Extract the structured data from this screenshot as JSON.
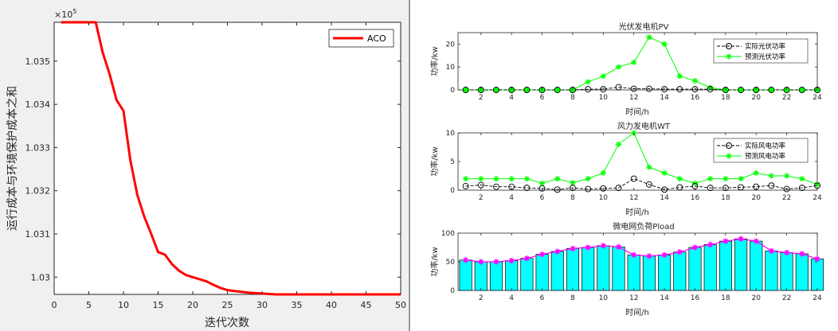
{
  "chart_data": [
    {
      "type": "line",
      "xlabel": "迭代次数",
      "ylabel": "运行成本与环境保护成本之和",
      "exponent_label": "×10",
      "exponent_power": "5",
      "xlim": [
        0,
        50
      ],
      "ylim": [
        1.0296,
        1.0359
      ],
      "xticks": [
        0,
        5,
        10,
        15,
        20,
        25,
        30,
        35,
        40,
        45,
        50
      ],
      "yticks": [
        1.03,
        1.031,
        1.032,
        1.033,
        1.034,
        1.035
      ],
      "yticklabels": [
        "1.03",
        "1.031",
        "1.032",
        "1.033",
        "1.034",
        "1.035"
      ],
      "legend_position": "top-right",
      "series": [
        {
          "name": "ACO",
          "color": "#ff0000",
          "x": [
            1,
            2,
            3,
            4,
            5,
            6,
            7,
            8,
            9,
            10,
            11,
            12,
            13,
            14,
            15,
            16,
            17,
            18,
            19,
            20,
            21,
            22,
            23,
            24,
            25,
            26,
            27,
            28,
            29,
            30,
            31,
            32,
            33,
            34,
            35,
            36,
            37,
            38,
            39,
            40,
            41,
            42,
            43,
            44,
            45,
            46,
            47,
            48,
            49,
            50
          ],
          "y": [
            1.0359,
            1.0359,
            1.0359,
            1.0359,
            1.0359,
            1.0359,
            1.0352,
            1.0347,
            1.0341,
            1.03385,
            1.0327,
            1.0319,
            1.0314,
            1.031,
            1.03058,
            1.03052,
            1.0303,
            1.03015,
            1.03005,
            1.03,
            1.02995,
            1.0299,
            1.02982,
            1.02975,
            1.0297,
            1.02968,
            1.02966,
            1.02964,
            1.02963,
            1.02962,
            1.02961,
            1.0296,
            1.0296,
            1.0296,
            1.0296,
            1.0296,
            1.0296,
            1.0296,
            1.0296,
            1.0296,
            1.0296,
            1.0296,
            1.0296,
            1.0296,
            1.0296,
            1.0296,
            1.0296,
            1.0296,
            1.0296,
            1.0296
          ]
        }
      ]
    },
    {
      "type": "line",
      "title": "光伏发电机PV",
      "xlabel": "时间/h",
      "ylabel": "功率/kw",
      "xlim": [
        0.5,
        24
      ],
      "ylim": [
        0,
        25
      ],
      "xticks": [
        2,
        4,
        6,
        8,
        10,
        12,
        14,
        16,
        18,
        20,
        22,
        24
      ],
      "yticks": [
        0,
        10,
        20
      ],
      "legend_position": "top-right",
      "series": [
        {
          "name": "实际光伏功率",
          "color": "#000000",
          "marker": "circle",
          "x": [
            1,
            2,
            3,
            4,
            5,
            6,
            7,
            8,
            9,
            10,
            11,
            12,
            13,
            14,
            15,
            16,
            17,
            18,
            19,
            20,
            21,
            22,
            23,
            24
          ],
          "y": [
            0,
            0,
            0,
            0,
            0,
            0,
            0,
            0,
            0.3,
            0.3,
            1.2,
            0.5,
            0.5,
            0.3,
            0.3,
            0.3,
            0.3,
            0,
            0,
            0,
            0,
            0,
            0,
            0
          ]
        },
        {
          "name": "预测光伏功率",
          "color": "#00ff00",
          "marker": "star",
          "x": [
            1,
            2,
            3,
            4,
            5,
            6,
            7,
            8,
            9,
            10,
            11,
            12,
            13,
            14,
            15,
            16,
            17,
            18,
            19,
            20,
            21,
            22,
            23,
            24
          ],
          "y": [
            0,
            0,
            0,
            0,
            0,
            0,
            0,
            0,
            3.5,
            6,
            10,
            12,
            23,
            20,
            6,
            4,
            1,
            0,
            0,
            0,
            0,
            0,
            0,
            0
          ]
        }
      ]
    },
    {
      "type": "line",
      "title": "风力发电机WT",
      "xlabel": "时间/h",
      "ylabel": "功率/kw",
      "xlim": [
        0.5,
        24
      ],
      "ylim": [
        0,
        10
      ],
      "xticks": [
        2,
        4,
        6,
        8,
        10,
        12,
        14,
        16,
        18,
        20,
        22,
        24
      ],
      "yticks": [
        0,
        5,
        10
      ],
      "legend_position": "top-right",
      "series": [
        {
          "name": "实际风电功率",
          "color": "#000000",
          "marker": "circle",
          "x": [
            1,
            2,
            3,
            4,
            5,
            6,
            7,
            8,
            9,
            10,
            11,
            12,
            13,
            14,
            15,
            16,
            17,
            18,
            19,
            20,
            21,
            22,
            23,
            24
          ],
          "y": [
            0.7,
            0.9,
            0.6,
            0.6,
            0.4,
            0.3,
            0.1,
            0.4,
            0.2,
            0.3,
            0.4,
            2.0,
            1.0,
            0.1,
            0.5,
            0.7,
            0.4,
            0.4,
            0.5,
            0.6,
            0.8,
            0.2,
            0.4,
            0.8
          ]
        },
        {
          "name": "预测风电功率",
          "color": "#00ff00",
          "marker": "star",
          "x": [
            1,
            2,
            3,
            4,
            5,
            6,
            7,
            8,
            9,
            10,
            11,
            12,
            13,
            14,
            15,
            16,
            17,
            18,
            19,
            20,
            21,
            22,
            23,
            24
          ],
          "y": [
            2.0,
            2.0,
            2.0,
            2.0,
            2.0,
            1.2,
            2.0,
            1.3,
            2.0,
            3.0,
            8.0,
            10.0,
            4.0,
            3.0,
            2.0,
            1.2,
            2.0,
            2.0,
            2.0,
            3.0,
            2.5,
            2.5,
            2.0,
            1.0
          ]
        }
      ]
    },
    {
      "type": "bar",
      "title": "微电网负荷Pload",
      "xlabel": "时间/h",
      "ylabel": "功率/kw",
      "xlim": [
        0.5,
        24
      ],
      "ylim": [
        0,
        100
      ],
      "xticks": [
        2,
        4,
        6,
        8,
        10,
        12,
        14,
        16,
        18,
        20,
        22,
        24
      ],
      "yticks": [
        0,
        50,
        100
      ],
      "bar_color": "#00ffff",
      "line_color": "#ff00ff",
      "categories": [
        1,
        2,
        3,
        4,
        5,
        6,
        7,
        8,
        9,
        10,
        11,
        12,
        13,
        14,
        15,
        16,
        17,
        18,
        19,
        20,
        21,
        22,
        23,
        24
      ],
      "values": [
        53,
        50,
        50,
        52,
        56,
        63,
        68,
        73,
        75,
        78,
        76,
        62,
        60,
        62,
        67,
        75,
        80,
        86,
        90,
        86,
        69,
        66,
        64,
        55
      ]
    }
  ]
}
